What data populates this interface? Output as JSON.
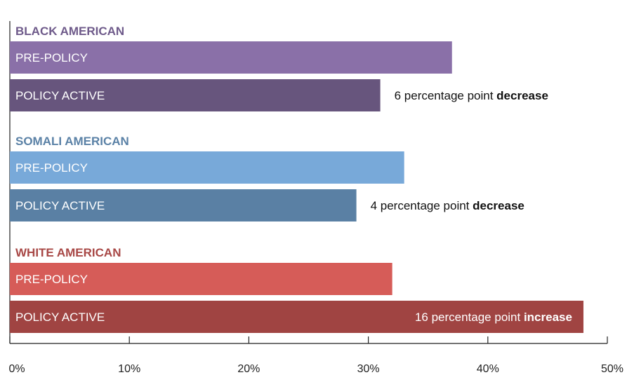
{
  "chart_data": {
    "type": "bar",
    "orientation": "horizontal",
    "xlim": [
      0,
      50
    ],
    "x_ticks": [
      0,
      10,
      20,
      30,
      40,
      50
    ],
    "x_tick_labels": [
      "0%",
      "10%",
      "20%",
      "30%",
      "40%",
      "50%"
    ],
    "grid": false,
    "groups": [
      {
        "name": "BLACK AMERICAN",
        "title_color": "#6e5a8a",
        "bars": [
          {
            "label": "PRE-POLICY",
            "value": 37,
            "color": "#8a70a8"
          },
          {
            "label": "POLICY ACTIVE",
            "value": 31,
            "color": "#67557d"
          }
        ],
        "annotation": {
          "text": "6 percentage point ",
          "emphasis": "decrease"
        }
      },
      {
        "name": "SOMALI AMERICAN",
        "title_color": "#5a81a6",
        "bars": [
          {
            "label": "PRE-POLICY",
            "value": 33,
            "color": "#78a9d9"
          },
          {
            "label": "POLICY ACTIVE",
            "value": 29,
            "color": "#5a80a4"
          }
        ],
        "annotation": {
          "text": "4 percentage point ",
          "emphasis": "decrease"
        }
      },
      {
        "name": "WHITE AMERICAN",
        "title_color": "#a84846",
        "bars": [
          {
            "label": "PRE-POLICY",
            "value": 32,
            "color": "#d65c58"
          },
          {
            "label": "POLICY ACTIVE",
            "value": 48,
            "color": "#a04442"
          }
        ],
        "annotation": {
          "text": "16 percentage point ",
          "emphasis": "increase"
        }
      }
    ]
  }
}
